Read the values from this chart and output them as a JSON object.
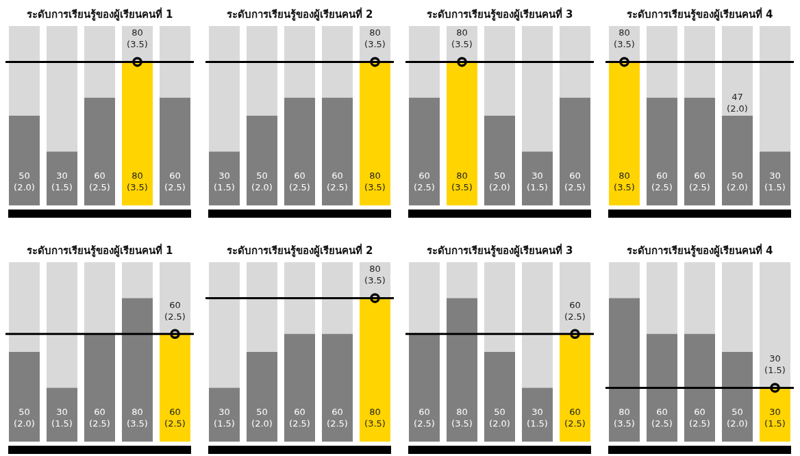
{
  "chart_data": [
    {
      "type": "bar",
      "title": "ระดับการเรียนรู้ของผู้เรียนคนที่ 1",
      "categories": [
        null,
        null,
        null,
        null,
        null
      ],
      "values": [
        50,
        30,
        60,
        80,
        60
      ],
      "colors": [
        "#7f7f7f",
        "#7f7f7f",
        "#7f7f7f",
        "#ffd400",
        "#7f7f7f"
      ],
      "value_labels": [
        "50\n(2.0)",
        "30\n(1.5)",
        "60\n(2.5)",
        "80\n(3.5)",
        "60\n(2.5)"
      ],
      "ylim": [
        0,
        100
      ],
      "ref_lines": [
        {
          "axis": "y",
          "value": 80,
          "label": "80\n(3.5)",
          "color": "#000000"
        }
      ]
    },
    {
      "type": "bar",
      "title": "ระดับการเรียนรู้ของผู้เรียนคนที่ 2",
      "categories": [
        null,
        null,
        null,
        null,
        null
      ],
      "values": [
        30,
        50,
        60,
        60,
        80
      ],
      "colors": [
        "#7f7f7f",
        "#7f7f7f",
        "#7f7f7f",
        "#7f7f7f",
        "#ffd400"
      ],
      "value_labels": [
        "30\n(1.5)",
        "50\n(2.0)",
        "60\n(2.5)",
        "60\n(2.5)",
        "80\n(3.5)"
      ],
      "ylim": [
        0,
        100
      ],
      "ref_lines": [
        {
          "axis": "y",
          "value": 80,
          "label": "80\n(3.5)",
          "color": "#000000"
        }
      ]
    },
    {
      "type": "bar",
      "title": "ระดับการเรียนรู้ของผู้เรียนคนที่ 3",
      "categories": [
        null,
        null,
        null,
        null,
        null
      ],
      "values": [
        60,
        80,
        50,
        30,
        60
      ],
      "colors": [
        "#7f7f7f",
        "#ffd400",
        "#7f7f7f",
        "#7f7f7f",
        "#7f7f7f"
      ],
      "value_labels": [
        "60\n(2.5)",
        "80\n(3.5)",
        "50\n(2.0)",
        "30\n(1.5)",
        "60\n(2.5)"
      ],
      "ylim": [
        0,
        100
      ],
      "ref_lines": [
        {
          "axis": "y",
          "value": 80,
          "label": "80\n(3.5)",
          "color": "#000000"
        }
      ]
    },
    {
      "type": "bar",
      "title": "ระดับการเรียนรู้ของผู้เรียนคนที่ 4",
      "categories": [
        null,
        null,
        null,
        null,
        null
      ],
      "values": [
        80,
        60,
        60,
        50,
        30
      ],
      "colors": [
        "#ffd400",
        "#7f7f7f",
        "#7f7f7f",
        "#7f7f7f",
        "#7f7f7f"
      ],
      "value_labels": [
        "80\n(3.5)",
        "60\n(2.5)",
        "60\n(2.5)",
        "50\n(2.0)",
        "30\n(1.5)"
      ],
      "ylim": [
        0,
        100
      ],
      "ref_lines": [
        {
          "axis": "y",
          "value": 80,
          "label": "80\n(3.5)",
          "color": "#000000"
        }
      ],
      "annotations": [
        {
          "text": "47\n(2.0)",
          "y": 50
        }
      ]
    },
    {
      "type": "bar",
      "title": "ระดับการเรียนรู้ของผู้เรียนคนที่ 1",
      "categories": [
        null,
        null,
        null,
        null,
        null
      ],
      "values": [
        50,
        30,
        60,
        80,
        60
      ],
      "colors": [
        "#7f7f7f",
        "#7f7f7f",
        "#7f7f7f",
        "#7f7f7f",
        "#ffd400"
      ],
      "value_labels": [
        "50\n(2.0)",
        "30\n(1.5)",
        "60\n(2.5)",
        "80\n(3.5)",
        "60\n(2.5)"
      ],
      "ylim": [
        0,
        100
      ],
      "ref_lines": [
        {
          "axis": "y",
          "value": 60,
          "label": "60\n(2.5)",
          "color": "#000000"
        }
      ]
    },
    {
      "type": "bar",
      "title": "ระดับการเรียนรู้ของผู้เรียนคนที่ 2",
      "categories": [
        null,
        null,
        null,
        null,
        null
      ],
      "values": [
        30,
        50,
        60,
        60,
        80
      ],
      "colors": [
        "#7f7f7f",
        "#7f7f7f",
        "#7f7f7f",
        "#7f7f7f",
        "#ffd400"
      ],
      "value_labels": [
        "30\n(1.5)",
        "50\n(2.0)",
        "60\n(2.5)",
        "60\n(2.5)",
        "80\n(3.5)"
      ],
      "ylim": [
        0,
        100
      ],
      "ref_lines": [
        {
          "axis": "y",
          "value": 80,
          "label": "80\n(3.5)",
          "color": "#000000"
        }
      ]
    },
    {
      "type": "bar",
      "title": "ระดับการเรียนรู้ของผู้เรียนคนที่ 3",
      "categories": [
        null,
        null,
        null,
        null,
        null
      ],
      "values": [
        60,
        80,
        50,
        30,
        60
      ],
      "colors": [
        "#7f7f7f",
        "#7f7f7f",
        "#7f7f7f",
        "#7f7f7f",
        "#ffd400"
      ],
      "value_labels": [
        "60\n(2.5)",
        "80\n(3.5)",
        "50\n(2.0)",
        "30\n(1.5)",
        "60\n(2.5)"
      ],
      "ylim": [
        0,
        100
      ],
      "ref_lines": [
        {
          "axis": "y",
          "value": 60,
          "label": "60\n(2.5)",
          "color": "#000000"
        }
      ]
    },
    {
      "type": "bar",
      "title": "ระดับการเรียนรู้ของผู้เรียนคนที่ 4",
      "categories": [
        null,
        null,
        null,
        null,
        null
      ],
      "values": [
        80,
        60,
        60,
        50,
        30
      ],
      "colors": [
        "#7f7f7f",
        "#7f7f7f",
        "#7f7f7f",
        "#7f7f7f",
        "#ffd400"
      ],
      "value_labels": [
        "80\n(3.5)",
        "60\n(2.5)",
        "60\n(2.5)",
        "50\n(2.0)",
        "30\n(1.5)"
      ],
      "ylim": [
        0,
        100
      ],
      "ref_lines": [
        {
          "axis": "y",
          "value": 30,
          "label": "30\n(1.5)",
          "color": "#000000"
        }
      ]
    }
  ]
}
